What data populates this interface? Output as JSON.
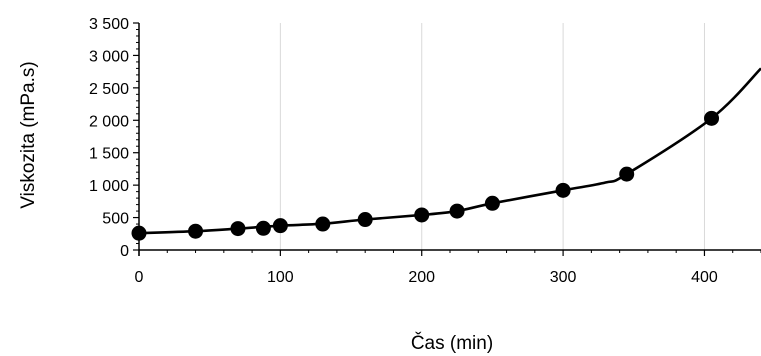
{
  "chart_data": {
    "type": "scatter",
    "title": "",
    "xlabel": "Čas (min)",
    "ylabel": "Viskozita (mPa.s)",
    "xlim": [
      0,
      440
    ],
    "ylim": [
      0,
      3500
    ],
    "x_ticks": [
      0,
      100,
      200,
      300,
      400
    ],
    "x_tick_labels": [
      "0",
      "100",
      "200",
      "300",
      "400"
    ],
    "y_ticks": [
      0,
      500,
      1000,
      1500,
      2000,
      2500,
      3000,
      3500
    ],
    "y_tick_labels": [
      "0",
      "500",
      "1 000",
      "1 500",
      "2 000",
      "2 500",
      "3 000",
      "3 500"
    ],
    "grid": "vertical",
    "legend": "none",
    "series": [
      {
        "x": [
          0,
          40,
          70,
          88,
          100,
          130,
          160,
          200,
          225,
          250,
          300,
          345,
          405
        ],
        "y": [
          260,
          290,
          330,
          335,
          375,
          400,
          470,
          540,
          600,
          720,
          920,
          1170,
          2030
        ],
        "color": "#000000",
        "trendline_points": [
          [
            0,
            260
          ],
          [
            40,
            290
          ],
          [
            70,
            330
          ],
          [
            100,
            375
          ],
          [
            130,
            405
          ],
          [
            160,
            470
          ],
          [
            200,
            540
          ],
          [
            225,
            600
          ],
          [
            250,
            720
          ],
          [
            300,
            920
          ],
          [
            330,
            1040
          ],
          [
            345,
            1170
          ],
          [
            405,
            2030
          ],
          [
            440,
            2800
          ]
        ]
      }
    ]
  }
}
